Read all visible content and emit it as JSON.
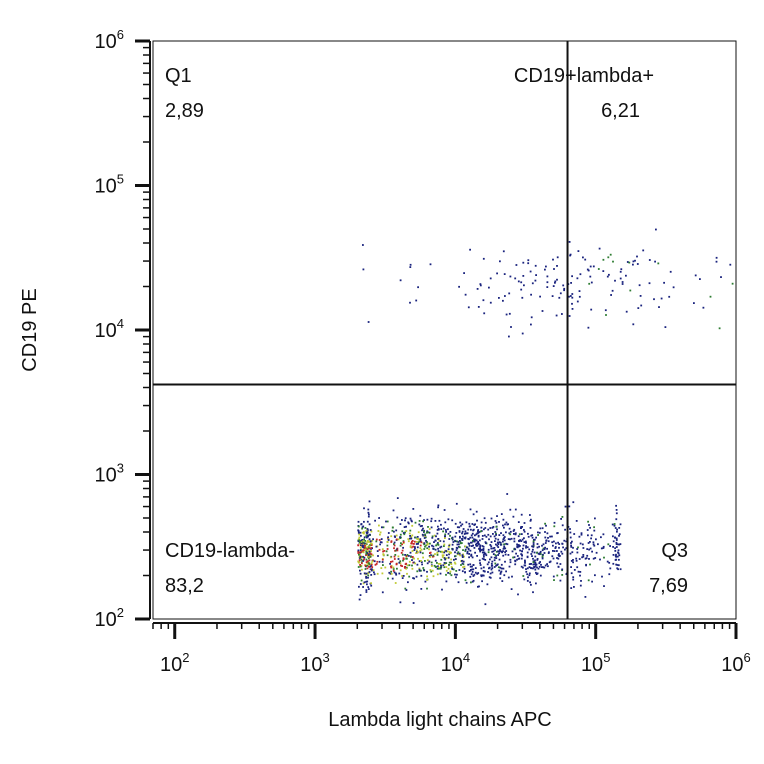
{
  "chart_data": {
    "type": "scatter",
    "title": "",
    "xlabel": "Lambda light chains  APC",
    "ylabel": "CD19 PE",
    "x_scale": "log",
    "y_scale": "log",
    "xlim": [
      70,
      1000000
    ],
    "ylim": [
      100,
      1000000
    ],
    "x_ticks": [
      {
        "base": "10",
        "exp": "2",
        "value": 100
      },
      {
        "base": "10",
        "exp": "3",
        "value": 1000
      },
      {
        "base": "10",
        "exp": "4",
        "value": 10000
      },
      {
        "base": "10",
        "exp": "5",
        "value": 100000
      },
      {
        "base": "10",
        "exp": "6",
        "value": 1000000
      }
    ],
    "y_ticks": [
      {
        "base": "10",
        "exp": "2",
        "value": 100
      },
      {
        "base": "10",
        "exp": "3",
        "value": 1000
      },
      {
        "base": "10",
        "exp": "4",
        "value": 10000
      },
      {
        "base": "10",
        "exp": "5",
        "value": 100000
      },
      {
        "base": "10",
        "exp": "6",
        "value": 1000000
      }
    ],
    "gates": {
      "x": 63000,
      "y": 4200
    },
    "quadrants": [
      {
        "name": "Q1",
        "value": "2,89"
      },
      {
        "name": "CD19+lambda+",
        "value": "6,21"
      },
      {
        "name": "CD19-lambda-",
        "value": "83,2"
      },
      {
        "name": "Q3",
        "value": "7,69"
      }
    ],
    "populations": [
      {
        "name_unprinted": true,
        "x_center_log": 4.0,
        "x_spread_log": 0.62,
        "y_center_log": 2.48,
        "y_spread_log": 0.12,
        "count": 1500,
        "x_min": 2000,
        "x_max": 150000
      },
      {
        "name_unprinted": true,
        "x_center_log": 4.8,
        "x_spread_log": 0.5,
        "y_center_log": 4.33,
        "y_spread_log": 0.14,
        "count": 170,
        "x_min": 2000,
        "x_max": 1000000
      }
    ],
    "density_colors": [
      "#1a237e",
      "#2e7d32",
      "#c0ca33",
      "#c62828"
    ],
    "grid": false,
    "legend": "none"
  }
}
